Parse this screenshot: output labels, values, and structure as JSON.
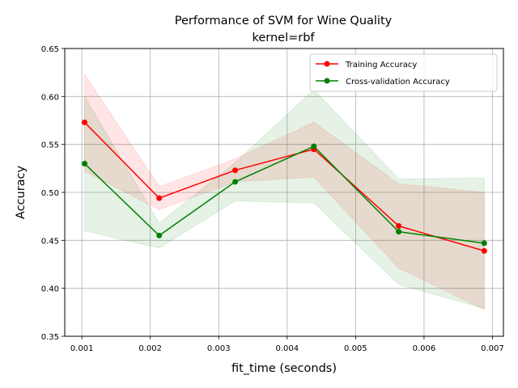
{
  "chart_data": {
    "type": "line",
    "title": "Performance of SVM for Wine Quality",
    "subtitle": "kernel=rbf",
    "xlabel": "fit_time (seconds)",
    "ylabel": "Accuracy",
    "xlim": [
      0.00075,
      0.00716
    ],
    "ylim": [
      0.35,
      0.65
    ],
    "xticks": [
      0.001,
      0.002,
      0.003,
      0.004,
      0.005,
      0.006,
      0.007
    ],
    "xtick_labels": [
      "0.001",
      "0.002",
      "0.003",
      "0.004",
      "0.005",
      "0.006",
      "0.007"
    ],
    "yticks": [
      0.35,
      0.4,
      0.45,
      0.5,
      0.55,
      0.6,
      0.65
    ],
    "ytick_labels": [
      "0.35",
      "0.40",
      "0.45",
      "0.50",
      "0.55",
      "0.60",
      "0.65"
    ],
    "grid": true,
    "legend_position": "top-right",
    "series": [
      {
        "name": "Training Accuracy",
        "color": "#ff0000",
        "x": [
          0.00104,
          0.00213,
          0.00324,
          0.00439,
          0.00563,
          0.00688
        ],
        "y": [
          0.573,
          0.494,
          0.523,
          0.545,
          0.465,
          0.439
        ],
        "upper": [
          0.623,
          0.506,
          0.535,
          0.573,
          0.509,
          0.5
        ],
        "lower": [
          0.522,
          0.482,
          0.511,
          0.516,
          0.421,
          0.378
        ]
      },
      {
        "name": "Cross-validation Accuracy",
        "color": "#008000",
        "x": [
          0.00104,
          0.00213,
          0.00324,
          0.00439,
          0.00563,
          0.00688
        ],
        "y": [
          0.53,
          0.455,
          0.511,
          0.548,
          0.459,
          0.447
        ],
        "upper": [
          0.6,
          0.468,
          0.531,
          0.607,
          0.514,
          0.515
        ],
        "lower": [
          0.46,
          0.442,
          0.491,
          0.489,
          0.404,
          0.379
        ]
      }
    ]
  }
}
